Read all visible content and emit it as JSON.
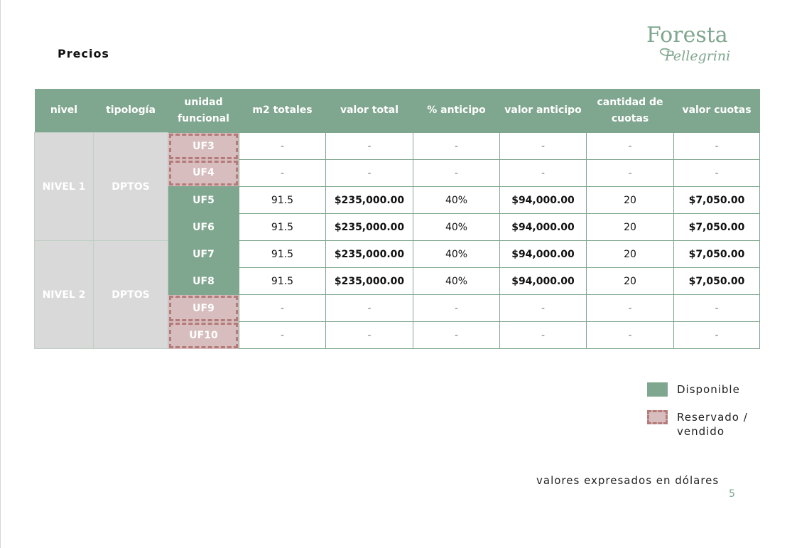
{
  "page": {
    "title": "Precios",
    "page_number": "5",
    "footnote": "valores expresados en dólares"
  },
  "logo": {
    "main": "Foresta",
    "sub": "Pellegrini"
  },
  "colors": {
    "available": "#7fa68e",
    "reserved": "#d7bdbd",
    "reserved_border": "#b57a7a",
    "group_cell": "#d9d9d9"
  },
  "table": {
    "headers": [
      "nivel",
      "tipología",
      "unidad funcional",
      "m2 totales",
      "valor total",
      "% anticipo",
      "valor anticipo",
      "cantidad de cuotas",
      "valor cuotas"
    ],
    "groups": [
      {
        "nivel": "NIVEL 1",
        "tipologia": "DPTOS"
      },
      {
        "nivel": "NIVEL 2",
        "tipologia": "DPTOS"
      }
    ],
    "rows": [
      {
        "unidad": "UF3",
        "status": "reservado",
        "m2": "-",
        "valor_total": "-",
        "anticipo_pct": "-",
        "valor_anticipo": "-",
        "cuotas": "-",
        "valor_cuotas": "-"
      },
      {
        "unidad": "UF4",
        "status": "reservado",
        "m2": "-",
        "valor_total": "-",
        "anticipo_pct": "-",
        "valor_anticipo": "-",
        "cuotas": "-",
        "valor_cuotas": "-"
      },
      {
        "unidad": "UF5",
        "status": "disponible",
        "m2": "91.5",
        "valor_total": "$235,000.00",
        "anticipo_pct": "40%",
        "valor_anticipo": "$94,000.00",
        "cuotas": "20",
        "valor_cuotas": "$7,050.00"
      },
      {
        "unidad": "UF6",
        "status": "disponible",
        "m2": "91.5",
        "valor_total": "$235,000.00",
        "anticipo_pct": "40%",
        "valor_anticipo": "$94,000.00",
        "cuotas": "20",
        "valor_cuotas": "$7,050.00"
      },
      {
        "unidad": "UF7",
        "status": "disponible",
        "m2": "91.5",
        "valor_total": "$235,000.00",
        "anticipo_pct": "40%",
        "valor_anticipo": "$94,000.00",
        "cuotas": "20",
        "valor_cuotas": "$7,050.00"
      },
      {
        "unidad": "UF8",
        "status": "disponible",
        "m2": "91.5",
        "valor_total": "$235,000.00",
        "anticipo_pct": "40%",
        "valor_anticipo": "$94,000.00",
        "cuotas": "20",
        "valor_cuotas": "$7,050.00"
      },
      {
        "unidad": "UF9",
        "status": "reservado",
        "m2": "-",
        "valor_total": "-",
        "anticipo_pct": "-",
        "valor_anticipo": "-",
        "cuotas": "-",
        "valor_cuotas": "-"
      },
      {
        "unidad": "UF10",
        "status": "reservado",
        "m2": "-",
        "valor_total": "-",
        "anticipo_pct": "-",
        "valor_anticipo": "-",
        "cuotas": "-",
        "valor_cuotas": "-"
      }
    ]
  },
  "legend": {
    "available_label": "Disponible",
    "reserved_label_line1": "Reservado /",
    "reserved_label_line2": "vendido"
  }
}
